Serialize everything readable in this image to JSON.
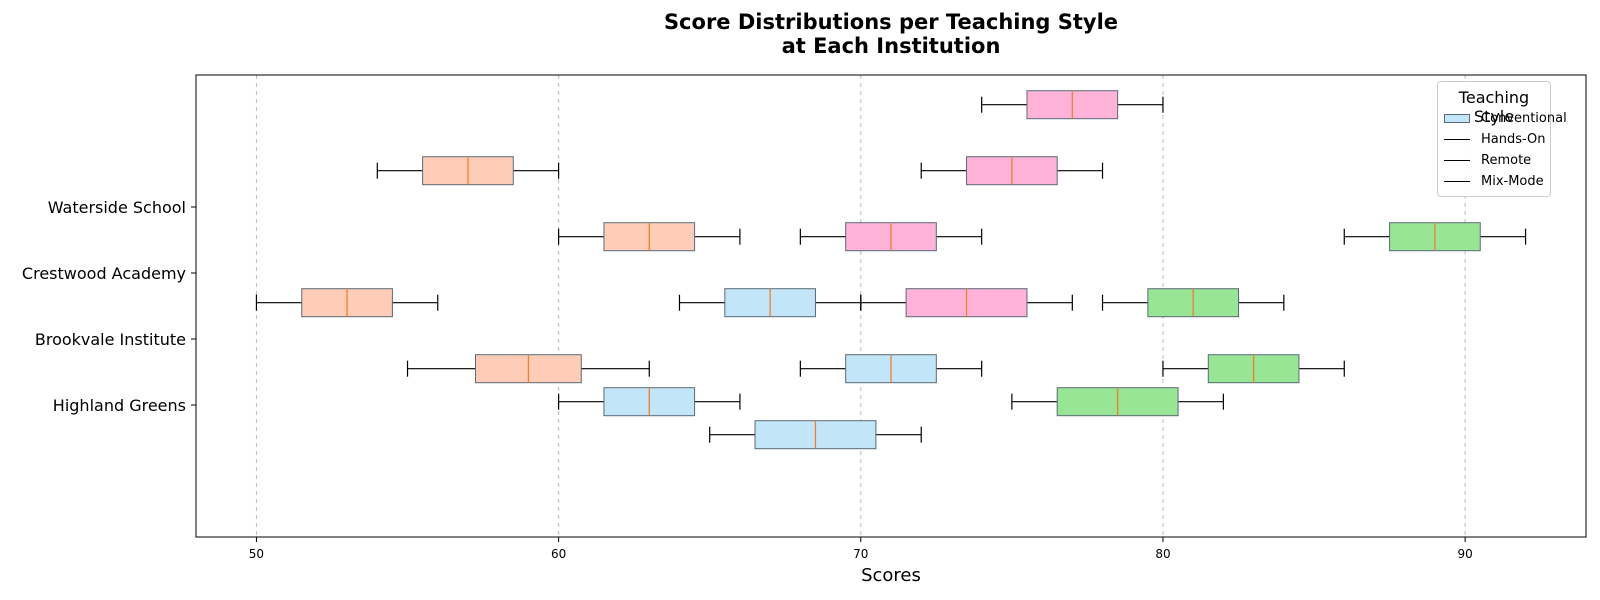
{
  "chart_data": {
    "type": "boxplot",
    "orientation": "horizontal",
    "title": [
      "Score Distributions per Teaching Style",
      "at Each Institution"
    ],
    "xlabel": "Scores",
    "ylabel": "",
    "xlim": [
      48,
      94
    ],
    "xticks": [
      50,
      60,
      70,
      80,
      90
    ],
    "grid": "x-dashed",
    "y_tick_labels": [
      "Highland Greens",
      "Brookvale Institute",
      "Crestwood Academy",
      "Waterside School"
    ],
    "legend": {
      "title": "Teaching Style",
      "placement": "top-right",
      "entries": [
        "Conventional",
        "Hands-On",
        "Remote",
        "Mix-Mode"
      ]
    },
    "series": [
      {
        "legend_name": "Conventional",
        "color": "#c2e5f8",
        "boxes": [
          {
            "row": -0.45,
            "whisker_low": 65,
            "q1": 66.5,
            "median": 68.5,
            "q3": 70.5,
            "whisker_high": 72
          },
          {
            "row": 0.55,
            "whisker_low": 68,
            "q1": 69.5,
            "median": 71,
            "q3": 72.5,
            "whisker_high": 74
          },
          {
            "row": 1.55,
            "whisker_low": 64,
            "q1": 65.5,
            "median": 67,
            "q3": 68.5,
            "whisker_high": 70
          },
          {
            "row": 0.05,
            "whisker_low": 60,
            "q1": 61.5,
            "median": 63,
            "q3": 64.5,
            "whisker_high": 66
          }
        ]
      },
      {
        "legend_name": "Hands-On",
        "color": "#ffcdb7",
        "boxes": [
          {
            "row": 0.55,
            "whisker_low": 55,
            "q1": 57.25,
            "median": 59,
            "q3": 60.75,
            "whisker_high": 63
          },
          {
            "row": 1.55,
            "whisker_low": 50,
            "q1": 51.5,
            "median": 53,
            "q3": 54.5,
            "whisker_high": 56
          },
          {
            "row": 2.55,
            "whisker_low": 60,
            "q1": 61.5,
            "median": 63,
            "q3": 64.5,
            "whisker_high": 66
          },
          {
            "row": 3.55,
            "whisker_low": 54,
            "q1": 55.5,
            "median": 57,
            "q3": 58.5,
            "whisker_high": 60
          }
        ]
      },
      {
        "legend_name": "Remote",
        "color": "#ffb3d9",
        "boxes": [
          {
            "row": 1.55,
            "whisker_low": 70,
            "q1": 71.5,
            "median": 73.5,
            "q3": 75.5,
            "whisker_high": 77
          },
          {
            "row": 2.55,
            "whisker_low": 68,
            "q1": 69.5,
            "median": 71,
            "q3": 72.5,
            "whisker_high": 74
          },
          {
            "row": 3.55,
            "whisker_low": 72,
            "q1": 73.5,
            "median": 75,
            "q3": 76.5,
            "whisker_high": 78
          },
          {
            "row": 4.55,
            "whisker_low": 74,
            "q1": 75.5,
            "median": 77,
            "q3": 78.5,
            "whisker_high": 80
          }
        ]
      },
      {
        "legend_name": "Mix-Mode",
        "color": "#98e595",
        "boxes": [
          {
            "row": 0.05,
            "whisker_low": 75,
            "q1": 76.5,
            "median": 78.5,
            "q3": 80.5,
            "whisker_high": 82
          },
          {
            "row": 0.55,
            "whisker_low": 80,
            "q1": 81.5,
            "median": 83,
            "q3": 84.5,
            "whisker_high": 86
          },
          {
            "row": 1.55,
            "whisker_low": 78,
            "q1": 79.5,
            "median": 81,
            "q3": 82.5,
            "whisker_high": 84
          },
          {
            "row": 2.55,
            "whisker_low": 86,
            "q1": 87.5,
            "median": 89,
            "q3": 90.5,
            "whisker_high": 92
          }
        ]
      }
    ],
    "colors": {
      "median": "#ef7f2f",
      "box_edge": "#5a6a78",
      "whisker": "#000000",
      "grid": "#bbbbbb"
    }
  }
}
